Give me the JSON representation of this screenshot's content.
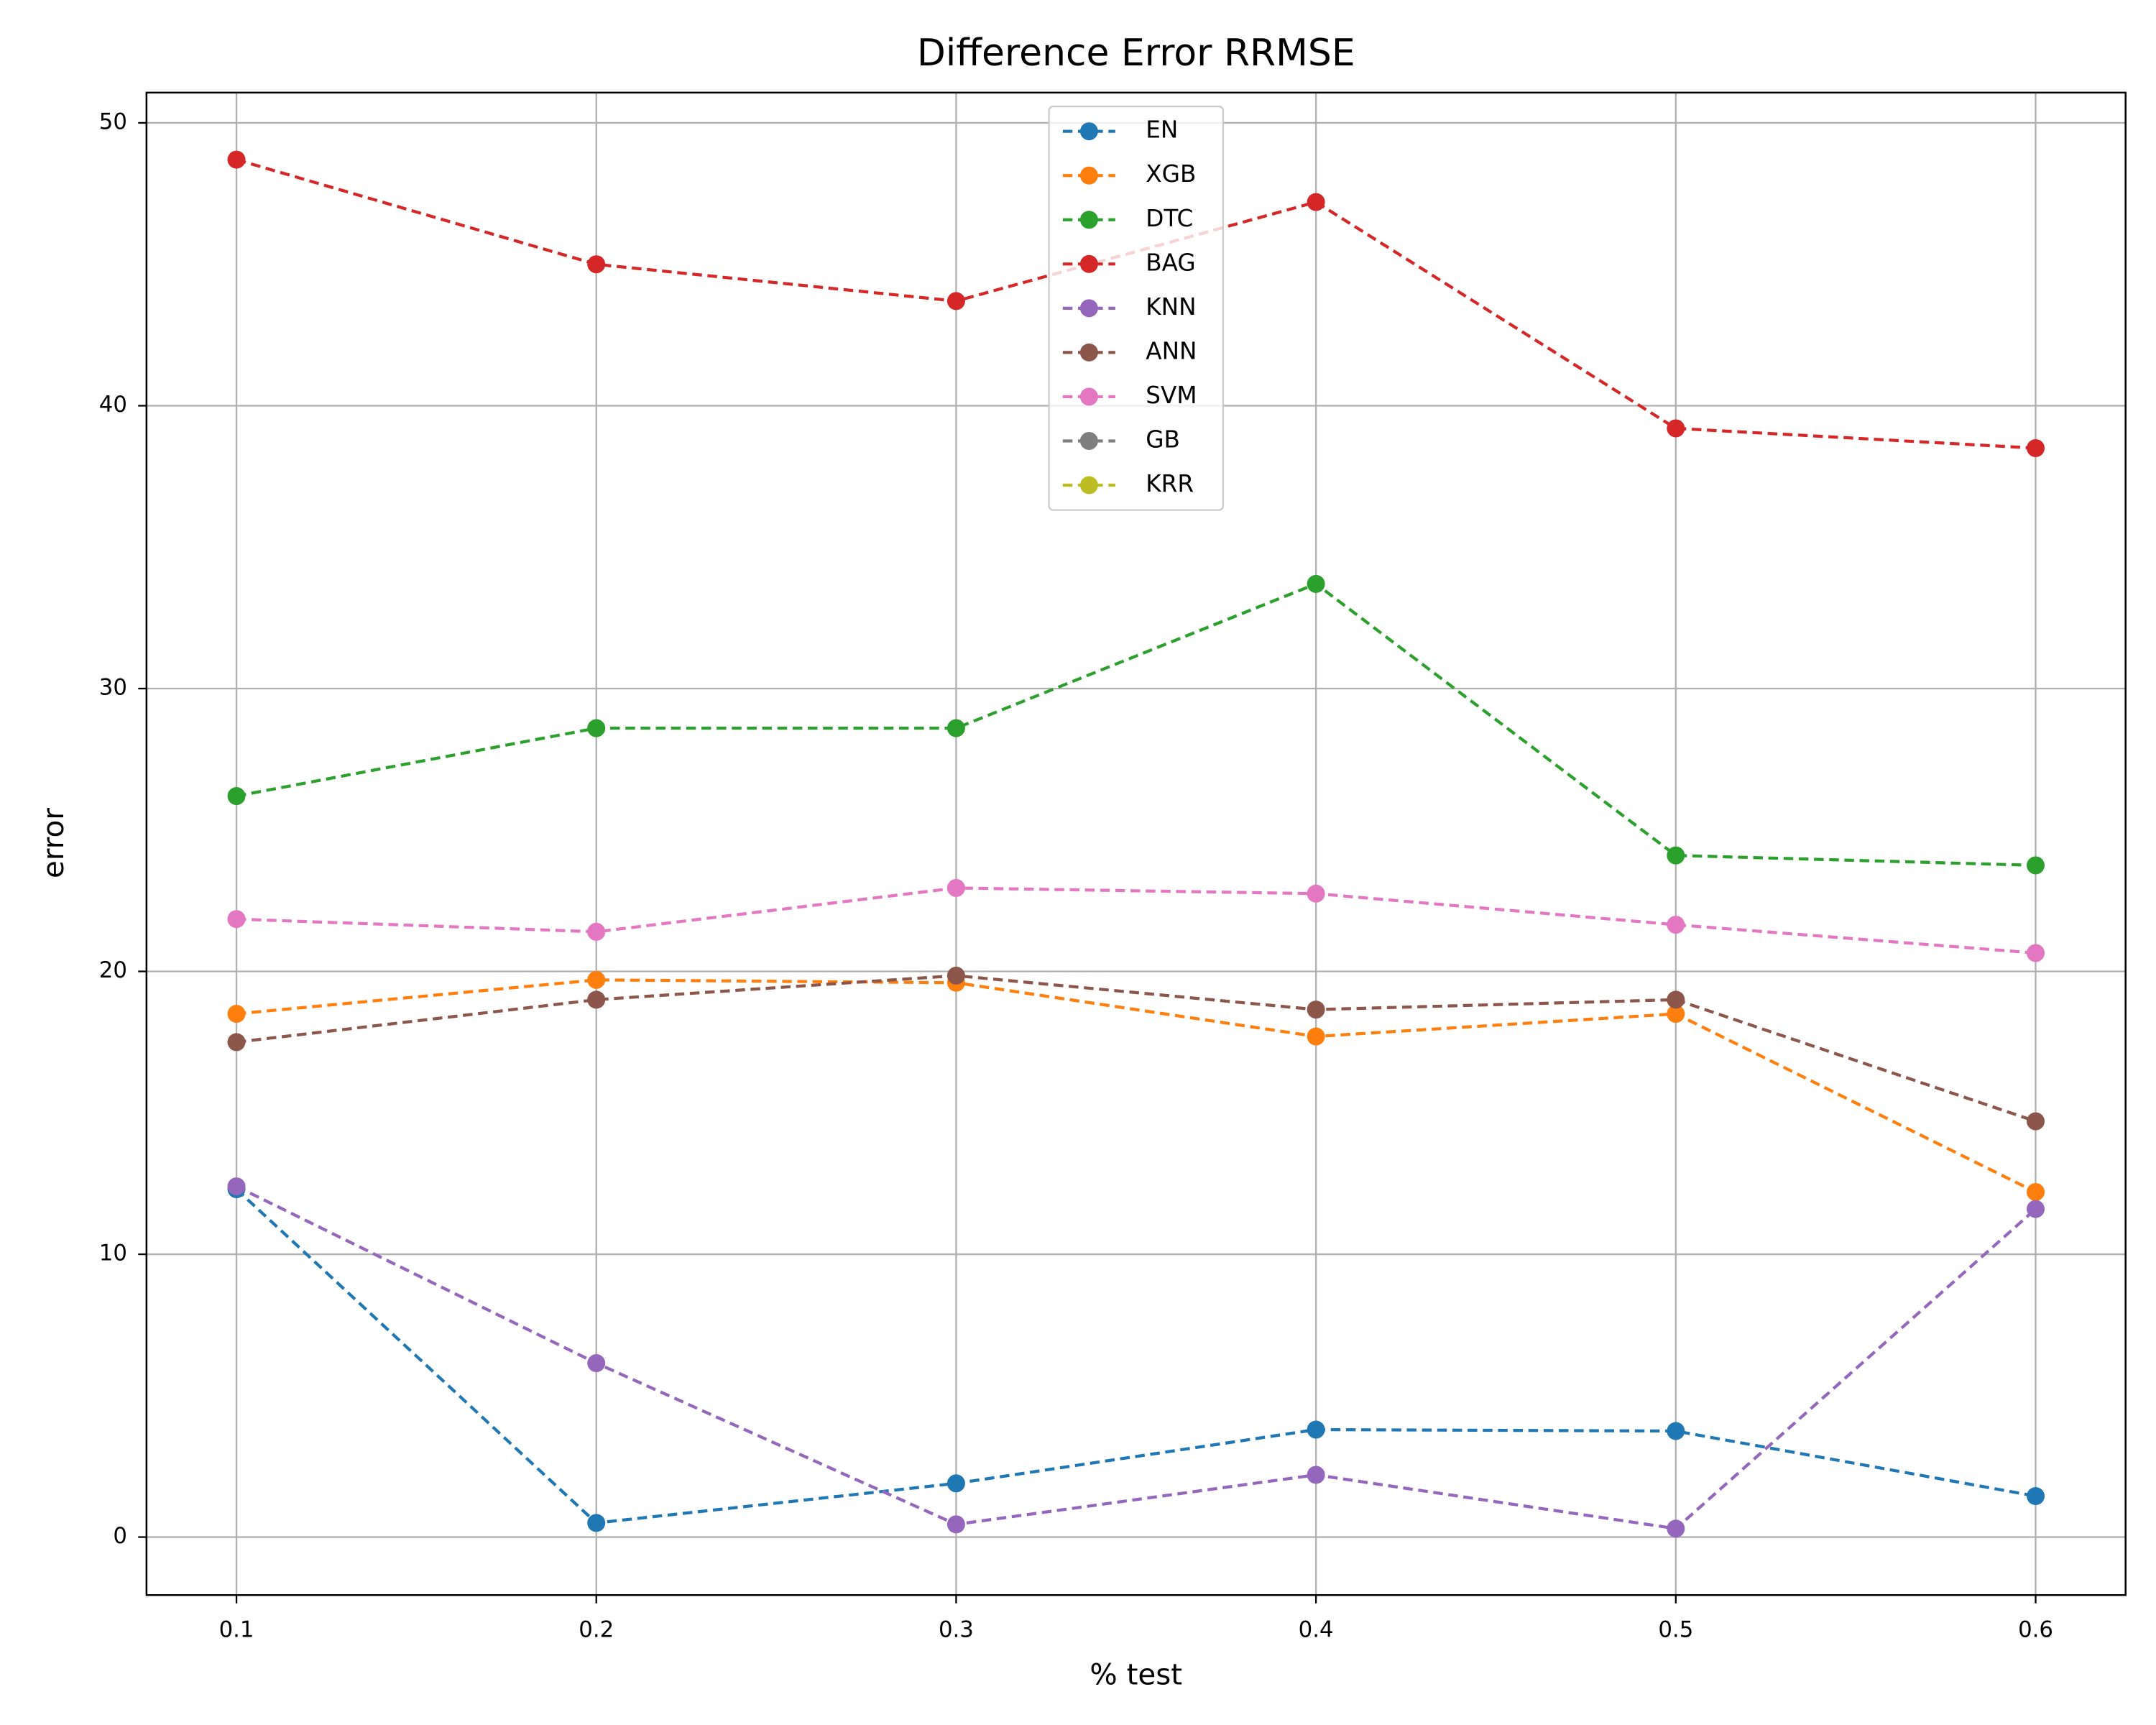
{
  "chart_data": {
    "type": "line",
    "title": "Difference Error RRMSE",
    "xlabel": "% test",
    "ylabel": "error",
    "x": [
      0.1,
      0.2,
      0.3,
      0.4,
      0.5,
      0.6
    ],
    "series": [
      {
        "name": "EN",
        "color": "#1f77b4",
        "values": [
          12.3,
          0.5,
          1.9,
          3.8,
          3.75,
          1.45
        ]
      },
      {
        "name": "XGB",
        "color": "#ff7f0e",
        "values": [
          18.5,
          19.7,
          19.6,
          17.7,
          18.5,
          12.2
        ]
      },
      {
        "name": "DTC",
        "color": "#2ca02c",
        "values": [
          26.2,
          28.6,
          28.6,
          33.7,
          24.1,
          23.75
        ]
      },
      {
        "name": "BAG",
        "color": "#d62728",
        "values": [
          48.7,
          45.0,
          43.7,
          47.2,
          39.2,
          38.5
        ]
      },
      {
        "name": "KNN",
        "color": "#9467bd",
        "values": [
          12.4,
          6.15,
          0.45,
          2.2,
          0.3,
          11.6
        ]
      },
      {
        "name": "ANN",
        "color": "#8c564b",
        "values": [
          17.5,
          19.0,
          19.85,
          18.65,
          19.0,
          14.7
        ]
      },
      {
        "name": "SVM",
        "color": "#e377c2",
        "values": [
          21.85,
          21.4,
          22.95,
          22.75,
          21.65,
          20.65
        ]
      },
      {
        "name": "GB",
        "color": "#7f7f7f",
        "values": [
          null,
          null,
          null,
          null,
          null,
          null
        ]
      },
      {
        "name": "KRR",
        "color": "#bcbd22",
        "values": [
          null,
          null,
          null,
          null,
          null,
          null
        ]
      }
    ],
    "xlim": [
      0.075,
      0.625
    ],
    "ylim": [
      -2.05,
      51.07
    ],
    "xticks": [
      0.1,
      0.2,
      0.3,
      0.4,
      0.5,
      0.6
    ],
    "yticks": [
      0,
      10,
      20,
      30,
      40,
      50
    ],
    "grid": true,
    "legend": "upper center"
  }
}
